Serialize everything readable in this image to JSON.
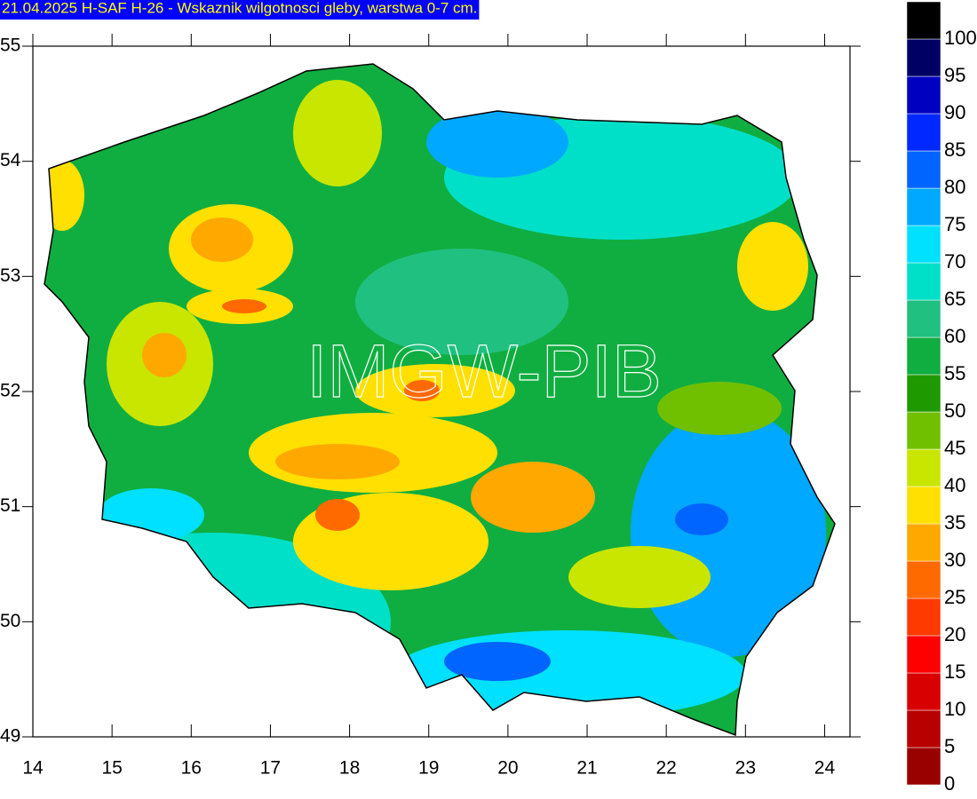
{
  "map": {
    "title": "21.04.2025 H-SAF H-26 - Wskaznik wilgotnosci gleby, warstwa 0-7 cm.",
    "watermark": "IMGW-PIB",
    "lon_range": [
      14,
      24.32
    ],
    "lat_range": [
      49,
      55
    ],
    "lon_ticks": [
      14,
      15,
      16,
      17,
      18,
      19,
      20,
      21,
      22,
      23,
      24
    ],
    "lat_ticks": [
      49,
      50,
      51,
      52,
      53,
      54,
      55
    ],
    "legend": {
      "labels": [
        0,
        5,
        10,
        15,
        20,
        25,
        30,
        35,
        40,
        45,
        50,
        55,
        60,
        65,
        70,
        75,
        80,
        85,
        90,
        95,
        100
      ],
      "colors": [
        "#990000",
        "#b80000",
        "#d80000",
        "#ff0000",
        "#ff3a00",
        "#ff6a00",
        "#ffa800",
        "#ffe000",
        "#c8e600",
        "#70c000",
        "#1e9a00",
        "#10ae40",
        "#20c080",
        "#00e0c8",
        "#00e0ff",
        "#00a8ff",
        "#0064ff",
        "#0028ff",
        "#0000c0",
        "#000064",
        "#000000"
      ]
    }
  }
}
